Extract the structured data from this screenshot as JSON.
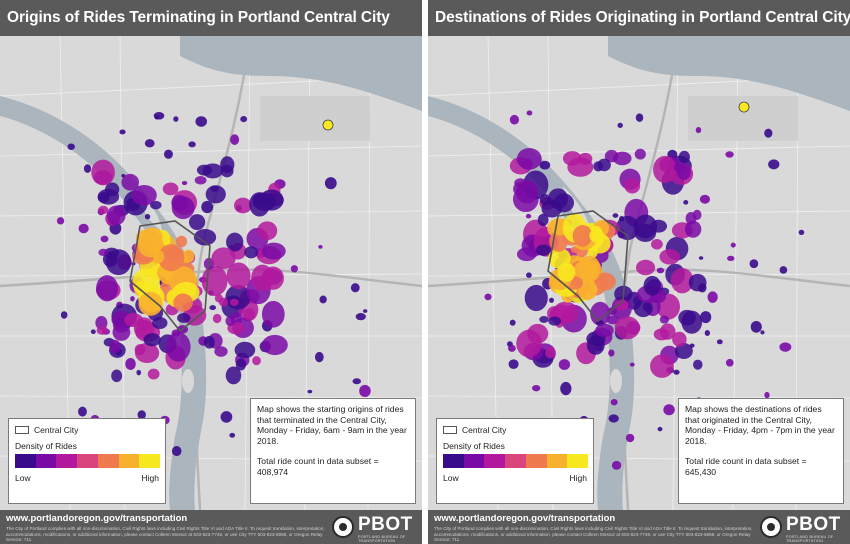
{
  "colors": {
    "ramp": [
      "#3a0a8c",
      "#7a0aa6",
      "#b3199e",
      "#d9457c",
      "#f07a4f",
      "#f8b12f",
      "#f7e81f"
    ],
    "map_land": "#d9d9d9",
    "map_water": "#aab5bd",
    "central_city_outline": "#555555"
  },
  "panels": [
    {
      "title": "Origins of Rides Terminating in Portland Central City",
      "legend": {
        "central_city": "Central City",
        "density": "Density of Rides",
        "low": "Low",
        "high": "High"
      },
      "note": {
        "description": "Map shows the starting origins of rides that terminated in the Central City, Monday - Friday, 6am - 9am in the year 2018.",
        "total": "Total ride count in data subset = 408,974"
      },
      "footer": {
        "url": "www.portlandoregon.gov/transportation",
        "fine_print": "The City of Portland complies with all non-discrimination, Civil Rights laws including Civil Rights Title VI and ADA Title II. To request translation, interpretation, accommodations, modifications, or additional information, please contact Colleen Mossor at 503-823-7748, or use City TTY 503-823-6868, or Oregon Relay Service: 711.",
        "brand": "PBOT",
        "brand_sub": "PORTLAND BUREAU OF TRANSPORTATION"
      }
    },
    {
      "title": "Destinations of Rides Originating in Portland Central City",
      "legend": {
        "central_city": "Central City",
        "density": "Density of Rides",
        "low": "Low",
        "high": "High"
      },
      "note": {
        "description": "Map shows the destinations of rides that originated in the Central City, Monday - Friday, 4pm - 7pm in the year 2018.",
        "total": "Total ride count in data subset = 645,430"
      },
      "footer": {
        "url": "www.portlandoregon.gov/transportation",
        "fine_print": "The City of Portland complies with all non-discrimination, Civil Rights laws including Civil Rights Title VI and ADA Title II. To request translation, interpretation, accommodations, modifications, or additional information, please contact Colleen Mossor at 503-823-7748, or use City TTY 503-823-6868, or Oregon Relay Service: 711.",
        "brand": "PBOT",
        "brand_sub": "PORTLAND BUREAU OF TRANSPORTATION"
      }
    }
  ]
}
